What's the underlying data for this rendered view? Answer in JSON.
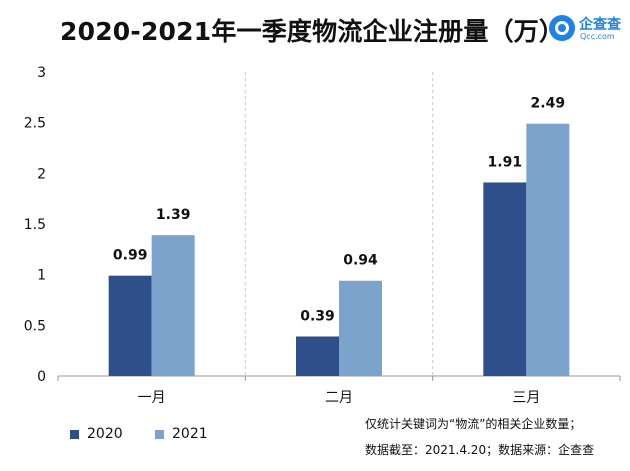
{
  "title": "2020-2021年一季度物流企业注册量（万）",
  "logo": {
    "name": "企查查",
    "sub": "Qcc.com"
  },
  "chart_data": {
    "type": "bar",
    "title": "2020-2021年一季度物流企业注册量（万）",
    "categories": [
      "一月",
      "二月",
      "三月"
    ],
    "series": [
      {
        "name": "2020",
        "values": [
          0.99,
          0.39,
          1.91
        ],
        "color": "#2f4f8a",
        "labels": [
          "0.99",
          "0.39",
          "1.91"
        ]
      },
      {
        "name": "2021",
        "values": [
          1.39,
          0.94,
          2.49
        ],
        "color": "#7ba3cc",
        "labels": [
          "1.39",
          "0.94",
          "2.49"
        ]
      }
    ],
    "ylim": [
      0,
      3
    ],
    "yticks": [
      "0",
      "0.5",
      "1",
      "1.5",
      "2",
      "2.5",
      "3"
    ],
    "ytick_values": [
      0,
      0.5,
      1,
      1.5,
      2,
      2.5,
      3
    ],
    "xlabel": "",
    "ylabel": "",
    "grid": "vertical dashed separators",
    "legend_position": "bottom-left"
  },
  "notes": [
    "仅统计关键词为“物流”的相关企业数量；",
    "数据截至：2021.4.20；数据来源：企查查"
  ]
}
